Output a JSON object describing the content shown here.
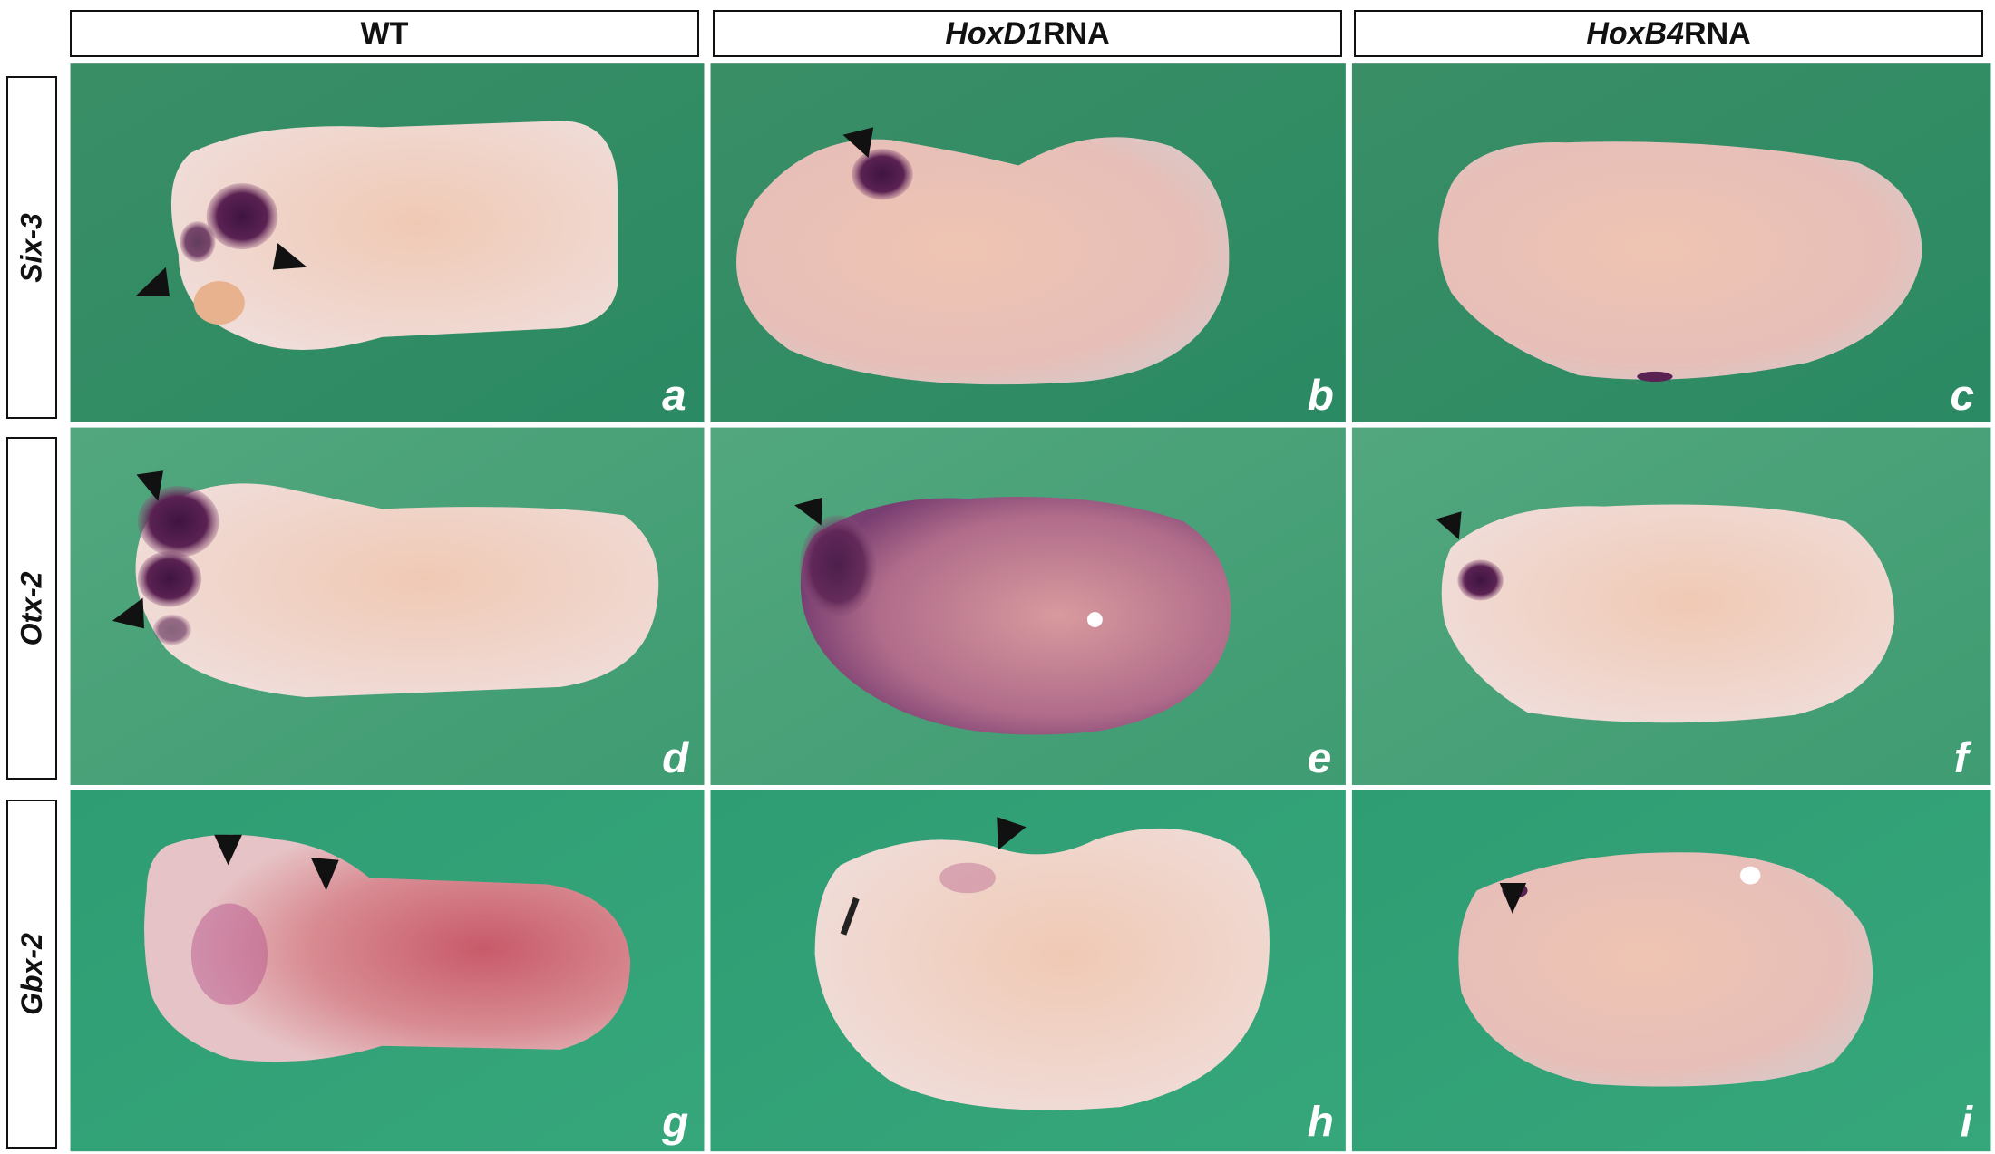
{
  "columns": [
    {
      "gene": "",
      "suffix": "WT"
    },
    {
      "gene": "HoxD1",
      "suffix": " RNA"
    },
    {
      "gene": "HoxB4",
      "suffix": " RNA"
    }
  ],
  "rows": [
    {
      "label": "Six-3"
    },
    {
      "label": "Otx-2"
    },
    {
      "label": "Gbx-2"
    }
  ],
  "panels": [
    "a",
    "b",
    "c",
    "d",
    "e",
    "f",
    "g",
    "h",
    "i"
  ],
  "colors": {
    "background_green": "#2f9a70",
    "embryo": "#e9c2b8",
    "stain": "#5a2252",
    "arrowhead": "#111111"
  }
}
